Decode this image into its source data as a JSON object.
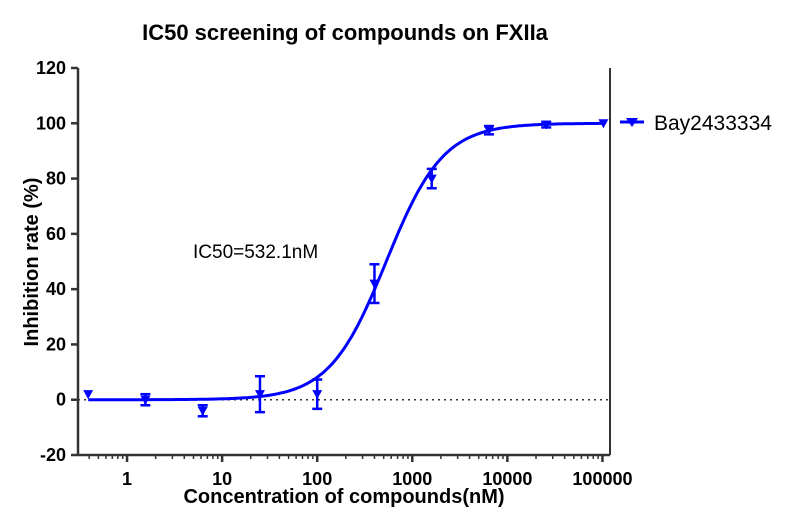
{
  "chart_data": {
    "type": "scatter",
    "title": "IC50 screening of compounds on FXIIa",
    "xlabel": "Concentration of compounds(nM)",
    "ylabel": "Inhibition rate (%)",
    "x_scale": "log",
    "xlim": [
      0.305,
      120000
    ],
    "ylim": [
      -20,
      120
    ],
    "x_tick_values": [
      1,
      10,
      100,
      1000,
      10000,
      100000
    ],
    "x_tick_labels": [
      "1",
      "10",
      "100",
      "1000",
      "10000",
      "100000"
    ],
    "y_tick_values": [
      -20,
      0,
      20,
      40,
      60,
      80,
      100,
      120
    ],
    "y_tick_labels": [
      "-20",
      "0",
      "20",
      "40",
      "60",
      "80",
      "100",
      "120"
    ],
    "grid": false,
    "reference_line": {
      "y": 0,
      "style": "dotted"
    },
    "legend_position": "right",
    "annotation": "IC50=532.1nM",
    "series": [
      {
        "name": "Bay2433334",
        "color": "#0000ff",
        "marker": "triangle-down",
        "x": [
          0.39,
          1.56,
          6.25,
          25,
          100,
          400,
          1600,
          6400,
          25600,
          102400
        ],
        "y": [
          2,
          0,
          -4,
          2,
          2,
          42,
          80,
          97.5,
          99.5,
          100
        ],
        "error": [
          0,
          2,
          2,
          6.5,
          5.3,
          7,
          3.5,
          1.5,
          1,
          0
        ],
        "fit": {
          "model": "4PL",
          "bottom": 0,
          "top": 100,
          "ic50": 532.1,
          "hill": 1.45
        }
      }
    ]
  }
}
